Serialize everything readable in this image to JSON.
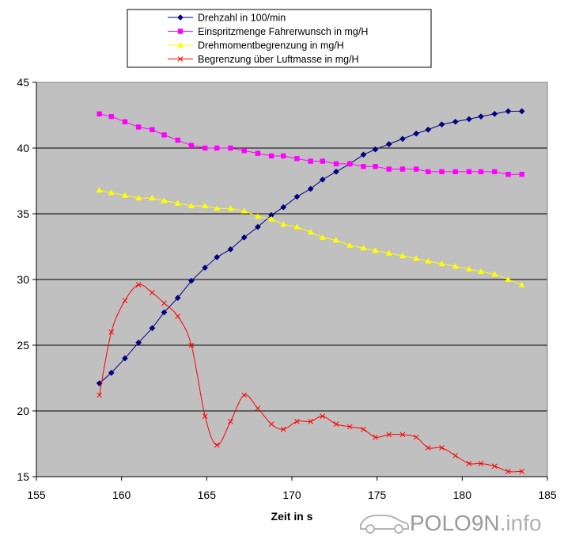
{
  "chart_data": {
    "type": "line",
    "title": "",
    "xlabel": "Zeit in s",
    "ylabel": "",
    "xlim": [
      155,
      185
    ],
    "ylim": [
      15,
      45
    ],
    "xticks": [
      155,
      160,
      165,
      170,
      175,
      180,
      185
    ],
    "yticks": [
      15,
      20,
      25,
      30,
      35,
      40,
      45
    ],
    "grid": "horizontal",
    "legend": "top-center",
    "plot_background": "#c0c0c0",
    "series": [
      {
        "name": "Drehzahl in 100/min",
        "color": "#000080",
        "marker": "diamond",
        "points": [
          [
            158.7,
            22.1
          ],
          [
            159.4,
            22.9
          ],
          [
            160.2,
            24.0
          ],
          [
            161.0,
            25.2
          ],
          [
            161.8,
            26.3
          ],
          [
            162.5,
            27.5
          ],
          [
            163.3,
            28.6
          ],
          [
            164.1,
            29.9
          ],
          [
            164.9,
            30.9
          ],
          [
            165.6,
            31.7
          ],
          [
            166.4,
            32.3
          ],
          [
            167.2,
            33.2
          ],
          [
            168.0,
            34.0
          ],
          [
            168.8,
            34.9
          ],
          [
            169.5,
            35.5
          ],
          [
            170.3,
            36.3
          ],
          [
            171.1,
            36.9
          ],
          [
            171.8,
            37.6
          ],
          [
            172.6,
            38.2
          ],
          [
            173.4,
            38.8
          ],
          [
            174.2,
            39.5
          ],
          [
            174.9,
            39.9
          ],
          [
            175.7,
            40.3
          ],
          [
            176.5,
            40.7
          ],
          [
            177.3,
            41.1
          ],
          [
            178.0,
            41.4
          ],
          [
            178.8,
            41.8
          ],
          [
            179.6,
            42.0
          ],
          [
            180.4,
            42.2
          ],
          [
            181.1,
            42.4
          ],
          [
            181.9,
            42.6
          ],
          [
            182.7,
            42.8
          ],
          [
            183.5,
            42.8
          ]
        ]
      },
      {
        "name": "Einspritzmenge Fahrerwunsch in mg/H",
        "color": "#ff00ff",
        "marker": "square",
        "points": [
          [
            158.7,
            42.6
          ],
          [
            159.4,
            42.4
          ],
          [
            160.2,
            42.0
          ],
          [
            161.0,
            41.6
          ],
          [
            161.8,
            41.4
          ],
          [
            162.5,
            41.0
          ],
          [
            163.3,
            40.6
          ],
          [
            164.1,
            40.2
          ],
          [
            164.9,
            40.0
          ],
          [
            165.6,
            40.0
          ],
          [
            166.4,
            40.0
          ],
          [
            167.2,
            39.8
          ],
          [
            168.0,
            39.6
          ],
          [
            168.8,
            39.4
          ],
          [
            169.5,
            39.4
          ],
          [
            170.3,
            39.2
          ],
          [
            171.1,
            39.0
          ],
          [
            171.8,
            39.0
          ],
          [
            172.6,
            38.8
          ],
          [
            173.4,
            38.8
          ],
          [
            174.2,
            38.6
          ],
          [
            174.9,
            38.6
          ],
          [
            175.7,
            38.4
          ],
          [
            176.5,
            38.4
          ],
          [
            177.3,
            38.4
          ],
          [
            178.0,
            38.2
          ],
          [
            178.8,
            38.2
          ],
          [
            179.6,
            38.2
          ],
          [
            180.4,
            38.2
          ],
          [
            181.1,
            38.2
          ],
          [
            181.9,
            38.2
          ],
          [
            182.7,
            38.0
          ],
          [
            183.5,
            38.0
          ]
        ]
      },
      {
        "name": "Drehmomentbegrenzung in mg/H",
        "color": "#ffff00",
        "marker": "triangle",
        "points": [
          [
            158.7,
            36.8
          ],
          [
            159.4,
            36.6
          ],
          [
            160.2,
            36.4
          ],
          [
            161.0,
            36.2
          ],
          [
            161.8,
            36.2
          ],
          [
            162.5,
            36.0
          ],
          [
            163.3,
            35.8
          ],
          [
            164.1,
            35.6
          ],
          [
            164.9,
            35.6
          ],
          [
            165.6,
            35.4
          ],
          [
            166.4,
            35.4
          ],
          [
            167.2,
            35.2
          ],
          [
            168.0,
            34.8
          ],
          [
            168.8,
            34.6
          ],
          [
            169.5,
            34.2
          ],
          [
            170.3,
            34.0
          ],
          [
            171.1,
            33.6
          ],
          [
            171.8,
            33.2
          ],
          [
            172.6,
            33.0
          ],
          [
            173.4,
            32.6
          ],
          [
            174.2,
            32.4
          ],
          [
            174.9,
            32.2
          ],
          [
            175.7,
            32.0
          ],
          [
            176.5,
            31.8
          ],
          [
            177.3,
            31.6
          ],
          [
            178.0,
            31.4
          ],
          [
            178.8,
            31.2
          ],
          [
            179.6,
            31.0
          ],
          [
            180.4,
            30.8
          ],
          [
            181.1,
            30.6
          ],
          [
            181.9,
            30.4
          ],
          [
            182.7,
            30.0
          ],
          [
            183.5,
            29.6
          ]
        ]
      },
      {
        "name": "Begrenzung über Luftmasse in mg/H",
        "color": "#ff0000",
        "marker": "x",
        "points": [
          [
            158.7,
            21.2
          ],
          [
            159.4,
            26.0
          ],
          [
            160.2,
            28.4
          ],
          [
            161.0,
            29.6
          ],
          [
            161.8,
            29.0
          ],
          [
            162.5,
            28.2
          ],
          [
            163.3,
            27.2
          ],
          [
            164.1,
            25.0
          ],
          [
            164.9,
            19.6
          ],
          [
            165.6,
            17.4
          ],
          [
            166.4,
            19.2
          ],
          [
            167.2,
            21.2
          ],
          [
            168.0,
            20.2
          ],
          [
            168.8,
            19.0
          ],
          [
            169.5,
            18.6
          ],
          [
            170.3,
            19.2
          ],
          [
            171.1,
            19.2
          ],
          [
            171.8,
            19.6
          ],
          [
            172.6,
            19.0
          ],
          [
            173.4,
            18.8
          ],
          [
            174.2,
            18.6
          ],
          [
            174.9,
            18.0
          ],
          [
            175.7,
            18.2
          ],
          [
            176.5,
            18.2
          ],
          [
            177.3,
            18.0
          ],
          [
            178.0,
            17.2
          ],
          [
            178.8,
            17.2
          ],
          [
            179.6,
            16.6
          ],
          [
            180.4,
            16.0
          ],
          [
            181.1,
            16.0
          ],
          [
            181.9,
            15.8
          ],
          [
            182.7,
            15.4
          ],
          [
            183.5,
            15.4
          ]
        ]
      }
    ]
  },
  "watermark": {
    "brand_a": "POLO",
    "brand_b": "9N",
    "brand_c": ".info",
    "icon": "car-icon"
  }
}
